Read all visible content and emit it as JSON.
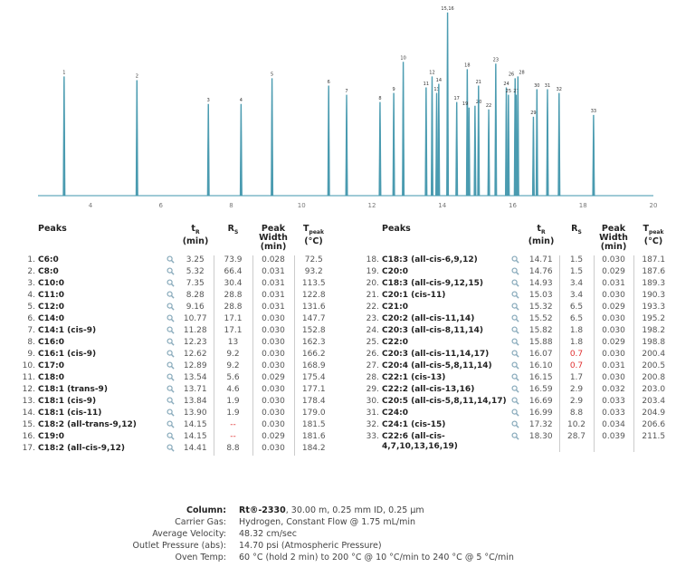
{
  "colors": {
    "trace": "#4a9bb0",
    "axis": "#7fb9c8",
    "highlight_red": "#e03030",
    "icon": "#88aabb"
  },
  "chart_data": {
    "type": "line",
    "subtype": "chromatogram",
    "xlabel": "",
    "ylabel": "",
    "xlim": [
      2.5,
      20
    ],
    "x_ticks": [
      4,
      6,
      8,
      10,
      12,
      14,
      16,
      18,
      20
    ],
    "grid": false,
    "peaks": [
      {
        "label": "1",
        "rt": 3.25,
        "height": 65
      },
      {
        "label": "2",
        "rt": 5.32,
        "height": 63
      },
      {
        "label": "3",
        "rt": 7.35,
        "height": 50
      },
      {
        "label": "4",
        "rt": 8.28,
        "height": 50
      },
      {
        "label": "5",
        "rt": 9.16,
        "height": 64
      },
      {
        "label": "6",
        "rt": 10.77,
        "height": 60
      },
      {
        "label": "7",
        "rt": 11.28,
        "height": 55
      },
      {
        "label": "8",
        "rt": 12.23,
        "height": 51
      },
      {
        "label": "9",
        "rt": 12.62,
        "height": 56
      },
      {
        "label": "10",
        "rt": 12.89,
        "height": 73
      },
      {
        "label": "11",
        "rt": 13.54,
        "height": 59
      },
      {
        "label": "12",
        "rt": 13.71,
        "height": 65
      },
      {
        "label": "13",
        "rt": 13.84,
        "height": 56
      },
      {
        "label": "14",
        "rt": 13.9,
        "height": 61
      },
      {
        "label": "15,16",
        "rt": 14.15,
        "height": 100
      },
      {
        "label": "17",
        "rt": 14.41,
        "height": 51
      },
      {
        "label": "18",
        "rt": 14.71,
        "height": 69
      },
      {
        "label": "19",
        "rt": 14.76,
        "height": 48
      },
      {
        "label": "20",
        "rt": 14.93,
        "height": 49
      },
      {
        "label": "21",
        "rt": 15.03,
        "height": 60
      },
      {
        "label": "22",
        "rt": 15.32,
        "height": 47
      },
      {
        "label": "23",
        "rt": 15.52,
        "height": 72
      },
      {
        "label": "24",
        "rt": 15.82,
        "height": 59
      },
      {
        "label": "25",
        "rt": 15.88,
        "height": 55
      },
      {
        "label": "26",
        "rt": 16.07,
        "height": 64
      },
      {
        "label": "27",
        "rt": 16.1,
        "height": 55
      },
      {
        "label": "28",
        "rt": 16.15,
        "height": 65
      },
      {
        "label": "29",
        "rt": 16.59,
        "height": 43
      },
      {
        "label": "30",
        "rt": 16.69,
        "height": 58
      },
      {
        "label": "31",
        "rt": 16.99,
        "height": 58
      },
      {
        "label": "32",
        "rt": 17.32,
        "height": 56
      },
      {
        "label": "33",
        "rt": 18.3,
        "height": 44
      }
    ]
  },
  "table": {
    "headers": {
      "peaks": "Peaks",
      "tr": "t",
      "tr_sub": "R",
      "tr_unit": "(min)",
      "rs": "R",
      "rs_sub": "S",
      "width1": "Peak",
      "width2": "Width",
      "width3": "(min)",
      "tpeak": "T",
      "tpeak_sub": "peak",
      "tpeak_unit": "(°C)"
    },
    "rows": [
      {
        "num": "1.",
        "name": "C6:0",
        "tr": "3.25",
        "rs": "73.9",
        "width": "0.028",
        "tpeak": "72.5"
      },
      {
        "num": "2.",
        "name": "C8:0",
        "tr": "5.32",
        "rs": "66.4",
        "width": "0.031",
        "tpeak": "93.2"
      },
      {
        "num": "3.",
        "name": "C10:0",
        "tr": "7.35",
        "rs": "30.4",
        "width": "0.031",
        "tpeak": "113.5"
      },
      {
        "num": "4.",
        "name": "C11:0",
        "tr": "8.28",
        "rs": "28.8",
        "width": "0.031",
        "tpeak": "122.8"
      },
      {
        "num": "5.",
        "name": "C12:0",
        "tr": "9.16",
        "rs": "28.8",
        "width": "0.031",
        "tpeak": "131.6"
      },
      {
        "num": "6.",
        "name": "C14:0",
        "tr": "10.77",
        "rs": "17.1",
        "width": "0.030",
        "tpeak": "147.7"
      },
      {
        "num": "7.",
        "name": "C14:1 (cis-9)",
        "tr": "11.28",
        "rs": "17.1",
        "width": "0.030",
        "tpeak": "152.8"
      },
      {
        "num": "8.",
        "name": "C16:0",
        "tr": "12.23",
        "rs": "13",
        "width": "0.030",
        "tpeak": "162.3"
      },
      {
        "num": "9.",
        "name": "C16:1 (cis-9)",
        "tr": "12.62",
        "rs": "9.2",
        "width": "0.030",
        "tpeak": "166.2"
      },
      {
        "num": "10.",
        "name": "C17:0",
        "tr": "12.89",
        "rs": "9.2",
        "width": "0.030",
        "tpeak": "168.9"
      },
      {
        "num": "11.",
        "name": "C18:0",
        "tr": "13.54",
        "rs": "5.6",
        "width": "0.029",
        "tpeak": "175.4"
      },
      {
        "num": "12.",
        "name": "C18:1 (trans-9)",
        "tr": "13.71",
        "rs": "4.6",
        "width": "0.030",
        "tpeak": "177.1"
      },
      {
        "num": "13.",
        "name": "C18:1 (cis-9)",
        "tr": "13.84",
        "rs": "1.9",
        "width": "0.030",
        "tpeak": "178.4"
      },
      {
        "num": "14.",
        "name": "C18:1 (cis-11)",
        "tr": "13.90",
        "rs": "1.9",
        "width": "0.030",
        "tpeak": "179.0"
      },
      {
        "num": "15.",
        "name": "C18:2 (all-trans-9,12)",
        "tr": "14.15",
        "rs": "--",
        "rs_red": true,
        "width": "0.030",
        "tpeak": "181.5"
      },
      {
        "num": "16.",
        "name": "C19:0",
        "tr": "14.15",
        "rs": "--",
        "rs_red": true,
        "width": "0.029",
        "tpeak": "181.6"
      },
      {
        "num": "17.",
        "name": "C18:2 (all-cis-9,12)",
        "tr": "14.41",
        "rs": "8.8",
        "width": "0.030",
        "tpeak": "184.2"
      },
      {
        "num": "18.",
        "name": "C18:3 (all-cis-6,9,12)",
        "tr": "14.71",
        "rs": "1.5",
        "width": "0.030",
        "tpeak": "187.1"
      },
      {
        "num": "19.",
        "name": "C20:0",
        "tr": "14.76",
        "rs": "1.5",
        "width": "0.029",
        "tpeak": "187.6"
      },
      {
        "num": "20.",
        "name": "C18:3 (all-cis-9,12,15)",
        "tr": "14.93",
        "rs": "3.4",
        "width": "0.031",
        "tpeak": "189.3"
      },
      {
        "num": "21.",
        "name": "C20:1 (cis-11)",
        "tr": "15.03",
        "rs": "3.4",
        "width": "0.030",
        "tpeak": "190.3"
      },
      {
        "num": "22.",
        "name": "C21:0",
        "tr": "15.32",
        "rs": "6.5",
        "width": "0.029",
        "tpeak": "193.3"
      },
      {
        "num": "23.",
        "name": "C20:2 (all-cis-11,14)",
        "tr": "15.52",
        "rs": "6.5",
        "width": "0.030",
        "tpeak": "195.2"
      },
      {
        "num": "24.",
        "name": "C20:3 (all-cis-8,11,14)",
        "tr": "15.82",
        "rs": "1.8",
        "width": "0.030",
        "tpeak": "198.2"
      },
      {
        "num": "25.",
        "name": "C22:0",
        "tr": "15.88",
        "rs": "1.8",
        "width": "0.029",
        "tpeak": "198.8"
      },
      {
        "num": "26.",
        "name": "C20:3 (all-cis-11,14,17)",
        "tr": "16.07",
        "rs": "0.7",
        "rs_red": true,
        "width": "0.030",
        "tpeak": "200.4"
      },
      {
        "num": "27.",
        "name": "C20:4 (all-cis-5,8,11,14)",
        "tr": "16.10",
        "rs": "0.7",
        "rs_red": true,
        "width": "0.031",
        "tpeak": "200.5"
      },
      {
        "num": "28.",
        "name": "C22:1 (cis-13)",
        "tr": "16.15",
        "rs": "1.7",
        "width": "0.030",
        "tpeak": "200.8"
      },
      {
        "num": "29.",
        "name": "C22:2 (all-cis-13,16)",
        "tr": "16.59",
        "rs": "2.9",
        "width": "0.032",
        "tpeak": "203.0"
      },
      {
        "num": "30.",
        "name": "C20:5 (all-cis-5,8,11,14,17)",
        "tr": "16.69",
        "rs": "2.9",
        "width": "0.033",
        "tpeak": "203.4"
      },
      {
        "num": "31.",
        "name": "C24:0",
        "tr": "16.99",
        "rs": "8.8",
        "width": "0.033",
        "tpeak": "204.9"
      },
      {
        "num": "32.",
        "name": "C24:1 (cis-15)",
        "tr": "17.32",
        "rs": "10.2",
        "width": "0.034",
        "tpeak": "206.6"
      },
      {
        "num": "33.",
        "name": "C22:6 (all-cis-4,7,10,13,16,19)",
        "tr": "18.30",
        "rs": "28.7",
        "width": "0.039",
        "tpeak": "211.5"
      }
    ]
  },
  "conditions": [
    {
      "key": "Column:",
      "bold": true,
      "value_bold": "Rt®-2330",
      "value": ", 30.00 m, 0.25 mm ID, 0.25 µm"
    },
    {
      "key": "Carrier Gas:",
      "value": "Hydrogen, Constant Flow @ 1.75 mL/min"
    },
    {
      "key": "Average Velocity:",
      "value": "48.32 cm/sec"
    },
    {
      "key": "Outlet Pressure (abs):",
      "value": "14.70 psi (Atmospheric Pressure)"
    },
    {
      "key": "Oven Temp:",
      "value": "60 °C (hold 2 min) to 200 °C @ 10 °C/min to 240 °C @ 5 °C/min"
    }
  ]
}
